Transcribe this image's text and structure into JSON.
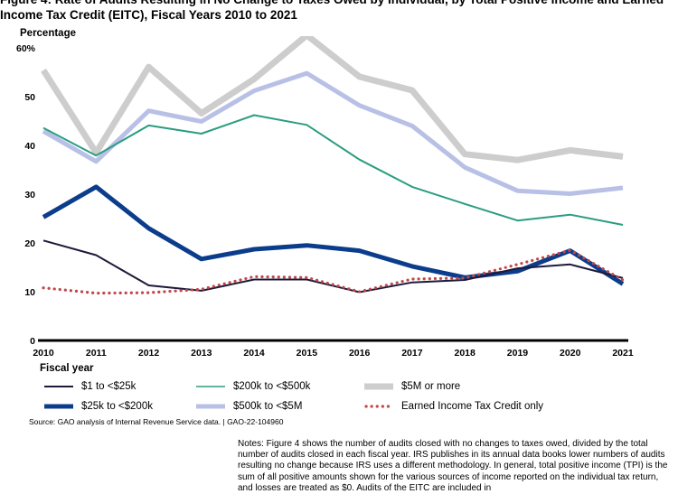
{
  "figure": {
    "title": "Figure 4: Rate of Audits Resulting in No Change to Taxes Owed by Individual, by Total Positive Income and Earned Income Tax Credit (EITC), Fiscal Years 2010 to 2021",
    "source": "Source: GAO analysis of Internal Revenue Service data.  |  GAO-22-104960",
    "notes": "Notes: Figure 4 shows the number of audits closed with no changes to taxes owed, divided by the total number of audits closed in each fiscal year. IRS publishes in its annual data books lower numbers of audits resulting no change because IRS uses a different methodology. In general, total positive income (TPI) is the sum of all positive amounts shown for the various sources of income reported on the individual tax return, and losses are treated as $0. Audits of the EITC are included in"
  },
  "chart_data": {
    "type": "line",
    "ylabel": "Percentage",
    "xlabel": "Fiscal year",
    "x": [
      2010,
      2011,
      2012,
      2013,
      2014,
      2015,
      2016,
      2017,
      2018,
      2019,
      2020,
      2021
    ],
    "ylim": [
      0,
      60
    ],
    "yticks": [
      "0",
      "10",
      "20",
      "30",
      "40",
      "50",
      "60%"
    ],
    "grid": false,
    "legend_position": "bottom",
    "series": [
      {
        "name": "$1 to <$25k",
        "color": "#1c1a3a",
        "style": "solid-thin",
        "values": [
          20.5,
          17.5,
          11.3,
          10.2,
          12.5,
          12.5,
          9.9,
          11.9,
          12.4,
          14.8,
          15.6,
          12.8
        ]
      },
      {
        "name": "$25k to <$200k",
        "color": "#0b3d8c",
        "style": "solid-thick",
        "values": [
          25.3,
          31.5,
          23.0,
          16.7,
          18.7,
          19.5,
          18.4,
          15.2,
          12.9,
          14.2,
          18.4,
          11.6
        ]
      },
      {
        "name": "$200k to <$500k",
        "color": "#2a9d7f",
        "style": "solid-thin",
        "values": [
          43.6,
          37.9,
          44.1,
          42.4,
          46.2,
          44.2,
          37.1,
          31.5,
          28.0,
          24.6,
          25.8,
          23.7
        ]
      },
      {
        "name": "$500k to <$5M",
        "color": "#b8c0e6",
        "style": "solid-thick",
        "values": [
          42.9,
          36.7,
          47.1,
          44.9,
          51.2,
          54.8,
          48.2,
          44.0,
          35.5,
          30.7,
          30.1,
          31.3
        ]
      },
      {
        "name": "$5M or more",
        "color": "#cdcdcd",
        "style": "solid-xthick",
        "values": [
          55.4,
          38.5,
          56.1,
          46.6,
          53.6,
          62.6,
          54.1,
          51.3,
          38.2,
          37.0,
          39.0,
          37.7
        ]
      },
      {
        "name": "Earned Income Tax Credit only",
        "color": "#c0474b",
        "style": "dotted",
        "values": [
          10.8,
          9.7,
          9.8,
          10.5,
          13.1,
          12.9,
          10.0,
          12.6,
          12.8,
          15.6,
          18.5,
          12.4
        ]
      }
    ]
  }
}
